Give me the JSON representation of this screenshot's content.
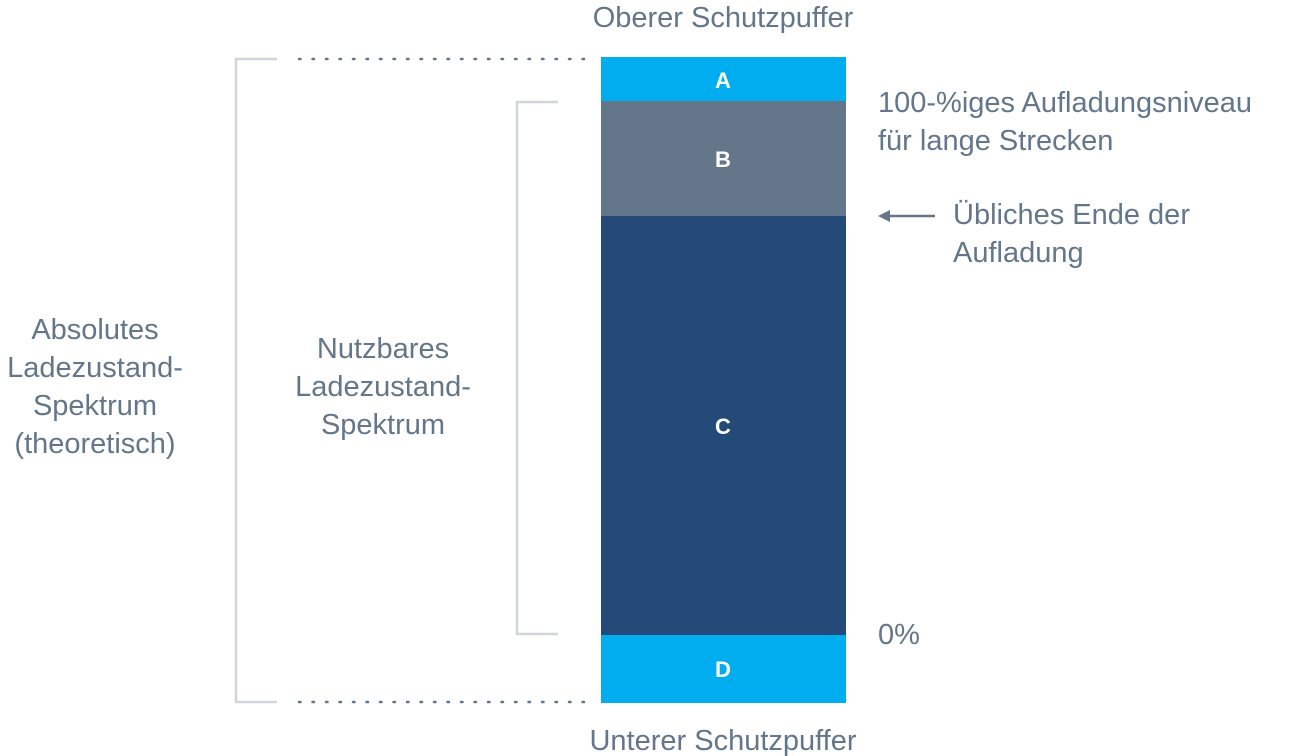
{
  "colors": {
    "buffer": "#00aeef",
    "reserve": "#64768a",
    "usable": "#244a7a",
    "text": "#64768a",
    "bracket": "#d0d5dc"
  },
  "segments": {
    "a": "A",
    "b": "B",
    "c": "C",
    "d": "D"
  },
  "labels": {
    "top_buffer": "Oberer Schutzpuffer",
    "bottom_buffer": "Unterer Schutzpuffer",
    "full_charge": [
      "100-%iges Aufladungsniveau",
      "für lange Strecken"
    ],
    "usual_end": [
      "Übliches Ende der",
      "Aufladung"
    ],
    "zero": "0%",
    "absolute": [
      "Absolutes",
      "Ladezustand-",
      "Spektrum",
      "(theoretisch)"
    ],
    "usable": [
      "Nutzbares",
      "Ladezustand-",
      "Spektrum"
    ]
  }
}
